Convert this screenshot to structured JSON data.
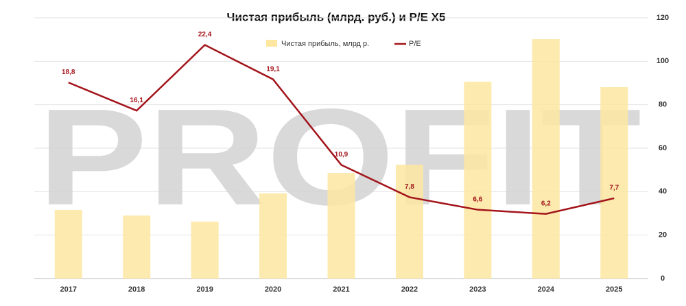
{
  "chart_data": {
    "type": "bar_line",
    "title": "Чистая прибыль (млрд. руб.) и P/E X5",
    "watermark": "PROFIT",
    "categories": [
      "2017",
      "2018",
      "2019",
      "2020",
      "2021",
      "2022",
      "2023",
      "2024",
      "2025"
    ],
    "series": [
      {
        "name": "Чистая прибыль, млрд р.",
        "type": "bar",
        "color": "#fde6a0",
        "values": [
          31.6,
          29,
          26.2,
          39.2,
          48.6,
          52.4,
          90.6,
          110.2,
          88.1
        ]
      },
      {
        "name": "P/E",
        "type": "line",
        "axis": "y2",
        "color": "#a3141b",
        "values": [
          18.8,
          16.1,
          22.4,
          19.1,
          10.9,
          7.8,
          6.6,
          6.2,
          7.7
        ],
        "value_labels": [
          "18,8",
          "16,1",
          "22,4",
          "19,1",
          "10,9",
          "7,8",
          "6,6",
          "6,2",
          "7,7"
        ]
      }
    ],
    "ylim": [
      0,
      120
    ],
    "yticks": [
      0,
      20,
      40,
      60,
      80,
      100,
      120
    ],
    "y2lim": [
      0,
      25
    ],
    "grid": true
  }
}
